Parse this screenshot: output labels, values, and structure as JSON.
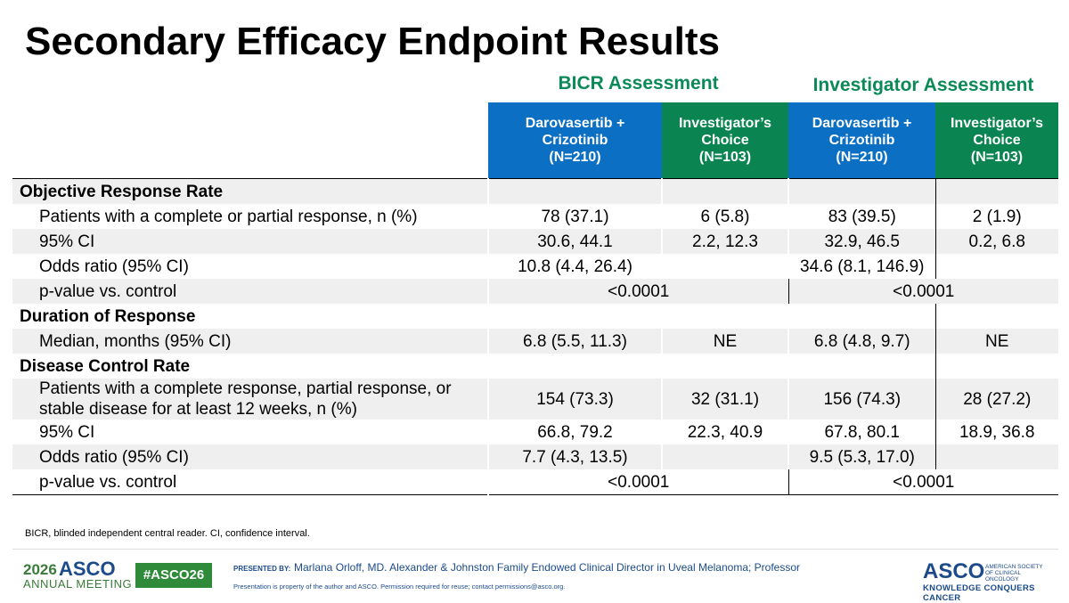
{
  "title": "Secondary Efficacy Endpoint Results",
  "groups": [
    "BICR Assessment",
    "Investigator Assessment"
  ],
  "columns": [
    {
      "name": "Darovasertib + Crizotinib",
      "n": "(N=210)"
    },
    {
      "name": "Investigator’s Choice",
      "n": "(N=103)"
    },
    {
      "name": "Darovasertib + Crizotinib",
      "n": "(N=210)"
    },
    {
      "name": "Investigator’s Choice",
      "n": "(N=103)"
    }
  ],
  "rows": [
    {
      "section": "Objective Response Rate"
    },
    {
      "label": "Patients with a complete or partial response, n (%)",
      "cells": [
        "78 (37.1)",
        "6 (5.8)",
        "83 (39.5)",
        "2 (1.9)"
      ]
    },
    {
      "label": "95% CI",
      "cells": [
        "30.6, 44.1",
        "2.2, 12.3",
        "32.9, 46.5",
        "0.2, 6.8"
      ]
    },
    {
      "label": "Odds ratio (95% CI)",
      "cells": [
        "10.8 (4.4, 26.4)",
        null,
        "34.6 (8.1, 146.9)",
        null
      ]
    },
    {
      "label": "p-value vs. control",
      "spans": [
        "<0.0001",
        "<0.0001"
      ]
    },
    {
      "section": "Duration of Response"
    },
    {
      "label": "Median, months (95% CI)",
      "cells": [
        "6.8 (5.5, 11.3)",
        "NE",
        "6.8 (4.8, 9.7)",
        "NE"
      ]
    },
    {
      "section": "Disease Control Rate"
    },
    {
      "label": "Patients with a complete response, partial response, or stable disease for at least 12 weeks, n (%)",
      "cells": [
        "154 (73.3)",
        "32 (31.1)",
        "156 (74.3)",
        "28 (27.2)"
      ]
    },
    {
      "label": "95% CI",
      "cells": [
        "66.8, 79.2",
        "22.3, 40.9",
        "67.8, 80.1",
        "18.9, 36.8"
      ]
    },
    {
      "label": "Odds ratio (95% CI)",
      "cells": [
        "7.7 (4.3, 13.5)",
        null,
        "9.5 (5.3, 17.0)",
        null
      ]
    },
    {
      "label": "p-value vs. control",
      "spans": [
        "<0.0001",
        "<0.0001"
      ]
    }
  ],
  "footnote": "BICR, blinded independent central reader. CI, confidence interval.",
  "footer": {
    "year": "2026",
    "brand": "ASCO",
    "meeting": "ANNUAL MEETING",
    "hashtag": "#ASCO26",
    "presented_by": "PRESENTED BY:",
    "presenter": "Marlana Orloff, MD. Alexander & Johnston Family Endowed Clinical Director in Uveal Melanoma; Professor",
    "permission": "Presentation is property of the author and ASCO. Permission required for reuse; contact permissions@asco.org.",
    "logo": "ASCO",
    "society": "AMERICAN SOCIETY OF CLINICAL ONCOLOGY",
    "tagline": "KNOWLEDGE CONQUERS CANCER"
  }
}
